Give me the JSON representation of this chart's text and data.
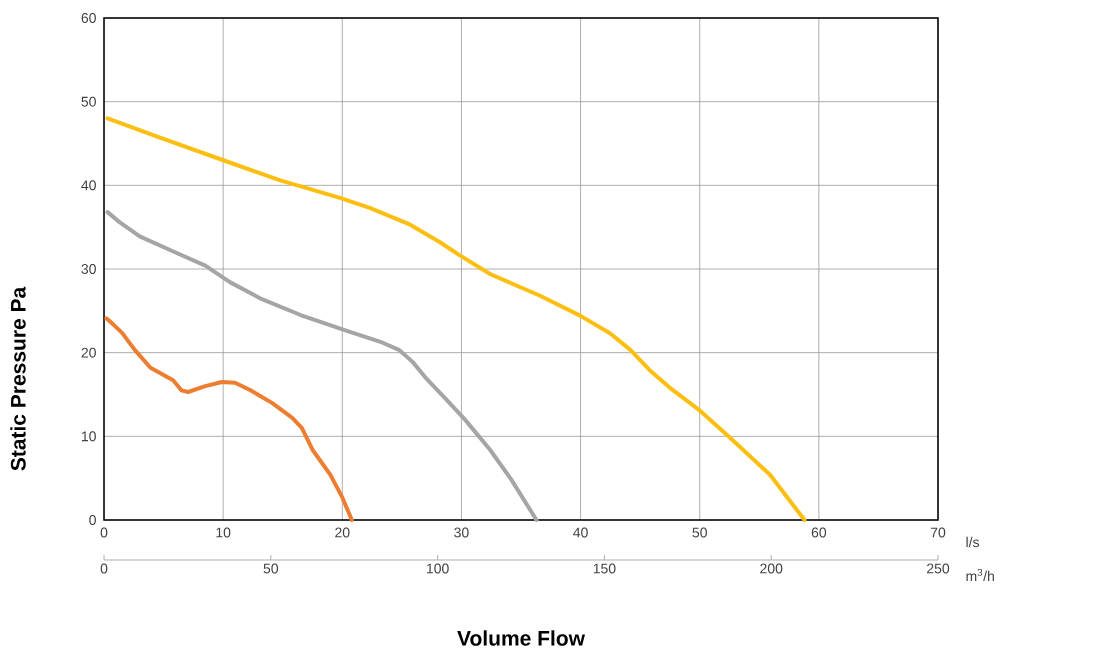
{
  "chart_data": {
    "type": "line",
    "xlabel": "Volume Flow",
    "ylabel": "Static Pressure Pa",
    "x2label": "m$^{3}$/h",
    "annotations": [
      "l/s"
    ],
    "xlim": [
      0,
      70
    ],
    "xticks": [
      0,
      10,
      20,
      30,
      40,
      50,
      60,
      70
    ],
    "x2lim": [
      0,
      250
    ],
    "x2ticks": [
      0,
      50,
      100,
      150,
      200,
      250
    ],
    "ylim": [
      0,
      60
    ],
    "yticks": [
      0,
      10,
      20,
      30,
      40,
      50,
      60
    ],
    "grid": true,
    "marker": "none",
    "line_style": "solid",
    "series": [
      {
        "color": "#ed7d31",
        "x": [
          0.2,
          0.6,
          1.5,
          2.6,
          3.9,
          5.8,
          6.5,
          7.05,
          8.5,
          9.9,
          11,
          12.3,
          14.1,
          15.8,
          16.6,
          17.5,
          19,
          20,
          20.8
        ],
        "values": [
          24.1,
          23.6,
          22.4,
          20.3,
          18.2,
          16.7,
          15.5,
          15.3,
          16.0,
          16.5,
          16.4,
          15.5,
          14.0,
          12.2,
          11.0,
          8.4,
          5.4,
          2.7,
          0
        ]
      },
      {
        "color": "#a5a5a5",
        "x": [
          0.3,
          1.3,
          3.0,
          5.96,
          8.5,
          10.6,
          13.1,
          16.5,
          20.2,
          23.2,
          24.8,
          25.9,
          27,
          28.6,
          30.3,
          32.4,
          34.2,
          36.3
        ],
        "values": [
          36.8,
          35.6,
          33.9,
          32.0,
          30.4,
          28.4,
          26.5,
          24.5,
          22.7,
          21.3,
          20.3,
          18.9,
          17,
          14.6,
          12.0,
          8.4,
          4.8,
          0
        ]
      },
      {
        "color": "#fcbe10",
        "x": [
          0.3,
          4.7,
          10.6,
          14.8,
          19.8,
          22.3,
          25.7,
          28.2,
          29.9,
          32.4,
          36.6,
          40,
          42.5,
          44.2,
          45.8,
          47.5,
          50,
          52.5,
          55.9,
          58.8
        ],
        "values": [
          48.0,
          45.7,
          42.7,
          40.6,
          38.5,
          37.3,
          35.3,
          33.2,
          31.6,
          29.4,
          26.8,
          24.4,
          22.3,
          20.3,
          17.9,
          15.8,
          13.1,
          9.9,
          5.4,
          0
        ]
      }
    ]
  }
}
